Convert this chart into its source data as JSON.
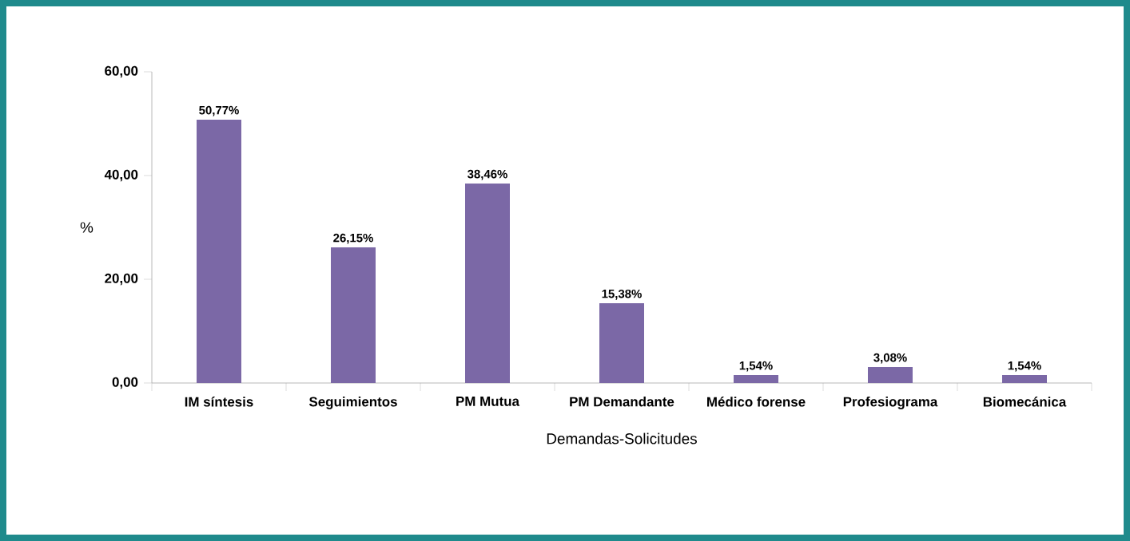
{
  "chart_data": {
    "type": "bar",
    "xlabel": "Demandas-Solicitudes",
    "ylabel": "%",
    "categories": [
      "IM síntesis",
      "Seguimientos",
      "PM Mutua",
      "PM Demandante",
      "Médico forense",
      "Profesiograma",
      "Biomecánica"
    ],
    "values": [
      50.77,
      26.15,
      38.46,
      15.38,
      1.54,
      3.08,
      1.54
    ],
    "value_labels": [
      "50,77%",
      "26,15%",
      "38,46%",
      "15,38%",
      "1,54%",
      "3,08%",
      "1,54%"
    ],
    "color": "#7b68a6",
    "ylim": [
      0,
      60
    ],
    "yticks": [
      {
        "value": 0,
        "label": "0,00"
      },
      {
        "value": 20,
        "label": "20,00"
      },
      {
        "value": 40,
        "label": "40,00"
      },
      {
        "value": 60,
        "label": "60,00"
      }
    ],
    "grid": false
  }
}
